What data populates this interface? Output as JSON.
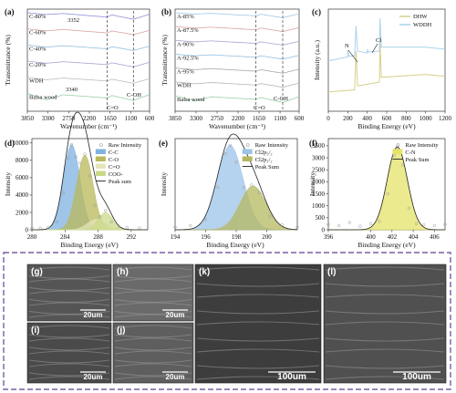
{
  "colors": {
    "frame": "#7a5fa6",
    "cc": "#7fb2e0",
    "co": "#b9b85a",
    "ceo": "#e6e4b8",
    "coo": "#c9d98a",
    "cl32": "#9cc4ea",
    "cl12": "#b6b860",
    "cn": "#e4e36a",
    "dhw": "#d8cf8a",
    "wddh": "#a9d3ee",
    "fit": "#222222",
    "raw": "#999999"
  },
  "panels": {
    "a": {
      "label": "(a)",
      "xlabel": "Wavenumber (cm⁻¹)",
      "ylabel": "Transmittance (%)",
      "peak_top": "3352",
      "peak_bottom": "3340",
      "band_co": "C=O",
      "band_coh": "C-OH"
    },
    "b": {
      "label": "(b)",
      "xlabel": "Wavenumber (cm⁻¹)",
      "ylabel": "Transmittance (%)",
      "band_co": "C=O",
      "band_coh": "C-OH"
    },
    "c": {
      "label": "(c)",
      "xlabel": "Binding Energy (eV)",
      "ylabel": "Intensity (a.u.)",
      "ann_n": "N",
      "ann_cl": "Cl"
    },
    "d": {
      "label": "(d)",
      "xlabel": "Binding Energy (eV)",
      "ylabel": "Intensity"
    },
    "e": {
      "label": "(e)",
      "xlabel": "Binding Energy (eV)",
      "ylabel": "Intensity"
    },
    "f": {
      "label": "(f)",
      "xlabel": "Binding Energy (eV)",
      "ylabel": "Intensity"
    }
  },
  "images": [
    {
      "label": "(g)",
      "scale": "20um"
    },
    {
      "label": "(h)",
      "scale": "20um"
    },
    {
      "label": "(i)",
      "scale": "20um"
    },
    {
      "label": "(j)",
      "scale": "20um"
    },
    {
      "label": "(k)",
      "scale": "100um"
    },
    {
      "label": "(l)",
      "scale": "100um"
    }
  ],
  "chart_data": [
    {
      "id": "a",
      "type": "line",
      "xlabel": "Wavenumber (cm⁻¹)",
      "ylabel": "Transmittance (%)",
      "xlim": [
        3850,
        600
      ],
      "x_ticks": [
        3850,
        3300,
        2750,
        2200,
        1650,
        1100,
        600
      ],
      "reference_lines": [
        1730,
        1030
      ],
      "series": [
        {
          "name": "C-80%",
          "color": "#8f8fd8",
          "points": [
            [
              3850,
              1
            ],
            [
              3352,
              0.88
            ],
            [
              2900,
              0.95
            ],
            [
              1730,
              0.7
            ],
            [
              1600,
              0.85
            ],
            [
              1030,
              0.55
            ],
            [
              600,
              0.9
            ]
          ]
        },
        {
          "name": "C-60%",
          "color": "#d9a3a3",
          "points": [
            [
              3850,
              1
            ],
            [
              3352,
              0.86
            ],
            [
              2900,
              0.96
            ],
            [
              1730,
              0.72
            ],
            [
              1600,
              0.86
            ],
            [
              1030,
              0.6
            ],
            [
              600,
              0.9
            ]
          ]
        },
        {
          "name": "C-40%",
          "color": "#8fbfe0",
          "points": [
            [
              3850,
              1
            ],
            [
              3352,
              0.85
            ],
            [
              2900,
              0.95
            ],
            [
              1730,
              0.74
            ],
            [
              1600,
              0.88
            ],
            [
              1030,
              0.62
            ],
            [
              600,
              0.92
            ]
          ]
        },
        {
          "name": "C-20%",
          "color": "#a5a5d0",
          "points": [
            [
              3850,
              1
            ],
            [
              3352,
              0.85
            ],
            [
              2900,
              0.96
            ],
            [
              1730,
              0.76
            ],
            [
              1600,
              0.88
            ],
            [
              1030,
              0.6
            ],
            [
              600,
              0.92
            ]
          ]
        },
        {
          "name": "WDH",
          "color": "#bdbdbd",
          "points": [
            [
              3850,
              1
            ],
            [
              3352,
              0.82
            ],
            [
              2900,
              0.94
            ],
            [
              1730,
              0.74
            ],
            [
              1600,
              0.86
            ],
            [
              1030,
              0.58
            ],
            [
              600,
              0.9
            ]
          ]
        },
        {
          "name": "Balsa wood",
          "color": "#9ad0a8",
          "points": [
            [
              3850,
              1
            ],
            [
              3340,
              0.55
            ],
            [
              2900,
              0.9
            ],
            [
              1730,
              0.68
            ],
            [
              1600,
              0.85
            ],
            [
              1030,
              0.5
            ],
            [
              600,
              0.92
            ]
          ]
        }
      ]
    },
    {
      "id": "b",
      "type": "line",
      "xlabel": "Wavenumber (cm⁻¹)",
      "ylabel": "Transmittance (%)",
      "xlim": [
        3850,
        600
      ],
      "x_ticks": [
        3850,
        3300,
        2750,
        2200,
        1650,
        1100,
        600
      ],
      "reference_lines": [
        1730,
        1030
      ],
      "series": [
        {
          "name": "A-85%",
          "color": "#9ec9e8",
          "points": [
            [
              3850,
              1
            ],
            [
              3350,
              0.9
            ],
            [
              2900,
              0.95
            ],
            [
              1730,
              0.75
            ],
            [
              1600,
              0.88
            ],
            [
              1030,
              0.6
            ],
            [
              600,
              0.92
            ]
          ]
        },
        {
          "name": "A-87.5%",
          "color": "#d9a3a3",
          "points": [
            [
              3850,
              1
            ],
            [
              3350,
              0.88
            ],
            [
              2900,
              0.95
            ],
            [
              1730,
              0.74
            ],
            [
              1600,
              0.88
            ],
            [
              1030,
              0.6
            ],
            [
              600,
              0.92
            ]
          ]
        },
        {
          "name": "A-90%",
          "color": "#a5a5d0",
          "points": [
            [
              3850,
              1
            ],
            [
              3350,
              0.88
            ],
            [
              2900,
              0.96
            ],
            [
              1730,
              0.76
            ],
            [
              1600,
              0.88
            ],
            [
              1030,
              0.62
            ],
            [
              600,
              0.92
            ]
          ]
        },
        {
          "name": "A-92.5%",
          "color": "#8fbfe0",
          "points": [
            [
              3850,
              1
            ],
            [
              3350,
              0.87
            ],
            [
              2900,
              0.95
            ],
            [
              1730,
              0.75
            ],
            [
              1600,
              0.87
            ],
            [
              1030,
              0.6
            ],
            [
              600,
              0.91
            ]
          ]
        },
        {
          "name": "A-95%",
          "color": "#a8a8a8",
          "points": [
            [
              3850,
              1
            ],
            [
              3350,
              0.86
            ],
            [
              2900,
              0.95
            ],
            [
              1730,
              0.74
            ],
            [
              1600,
              0.86
            ],
            [
              1030,
              0.58
            ],
            [
              600,
              0.91
            ]
          ]
        },
        {
          "name": "WDH",
          "color": "#b5b5b5",
          "points": [
            [
              3850,
              1
            ],
            [
              3350,
              0.84
            ],
            [
              2900,
              0.94
            ],
            [
              1730,
              0.74
            ],
            [
              1600,
              0.86
            ],
            [
              1030,
              0.56
            ],
            [
              600,
              0.9
            ]
          ]
        },
        {
          "name": "Balsa wood",
          "color": "#9ad0a8",
          "points": [
            [
              3850,
              1
            ],
            [
              3340,
              0.58
            ],
            [
              2900,
              0.9
            ],
            [
              1730,
              0.7
            ],
            [
              1600,
              0.85
            ],
            [
              1030,
              0.45
            ],
            [
              600,
              0.92
            ]
          ]
        }
      ]
    },
    {
      "id": "c",
      "type": "line",
      "xlabel": "Binding Energy (eV)",
      "ylabel": "Intensity (a.u.)",
      "xlim": [
        0,
        1200
      ],
      "x_ticks": [
        0,
        200,
        400,
        600,
        800,
        1000,
        1200
      ],
      "legend": "top-right",
      "series": [
        {
          "name": "DHW",
          "color": "#d8cf8a",
          "points": [
            [
              0,
              0.2
            ],
            [
              270,
              0.22
            ],
            [
              285,
              0.62
            ],
            [
              300,
              0.26
            ],
            [
              525,
              0.3
            ],
            [
              532,
              0.72
            ],
            [
              545,
              0.35
            ],
            [
              1000,
              0.38
            ],
            [
              1200,
              0.36
            ]
          ]
        },
        {
          "name": "WDDH",
          "color": "#a9d3ee",
          "points": [
            [
              0,
              0.52
            ],
            [
              200,
              0.56
            ],
            [
              202,
              0.63
            ],
            [
              210,
              0.57
            ],
            [
              270,
              0.57
            ],
            [
              285,
              0.88
            ],
            [
              300,
              0.62
            ],
            [
              400,
              0.6
            ],
            [
              402,
              0.64
            ],
            [
              410,
              0.61
            ],
            [
              525,
              0.62
            ],
            [
              532,
              0.96
            ],
            [
              545,
              0.66
            ],
            [
              1000,
              0.66
            ],
            [
              1200,
              0.64
            ]
          ]
        }
      ]
    },
    {
      "id": "d",
      "type": "area",
      "xlabel": "Binding Energy (eV)",
      "ylabel": "Intensity",
      "xlim": [
        280,
        294
      ],
      "ylim": [
        0,
        10500
      ],
      "x_ticks": [
        280,
        284,
        288,
        292
      ],
      "y_ticks": [
        0,
        2000,
        4000,
        6000,
        8000,
        10000
      ],
      "legend": "top-right",
      "components": [
        {
          "name": "C-C",
          "center": 284.8,
          "height": 9800,
          "width": 1.0,
          "color": "#7fb2e0"
        },
        {
          "name": "C-O",
          "center": 286.4,
          "height": 8600,
          "width": 1.0,
          "color": "#b9b85a"
        },
        {
          "name": "C=O",
          "center": 287.8,
          "height": 1200,
          "width": 1.1,
          "color": "#e6e4b8"
        },
        {
          "name": "COO-",
          "center": 288.9,
          "height": 2000,
          "width": 0.9,
          "color": "#c9d98a"
        }
      ],
      "fit_name": "Peak sum",
      "raw_name": "Raw Intensity",
      "raw_points": [
        [
          280,
          180
        ],
        [
          281,
          200
        ],
        [
          282,
          280
        ],
        [
          283,
          900
        ],
        [
          283.8,
          4200
        ],
        [
          284.4,
          8300
        ],
        [
          284.8,
          9800
        ],
        [
          285.3,
          8400
        ],
        [
          285.8,
          7700
        ],
        [
          286.4,
          8700
        ],
        [
          287,
          6200
        ],
        [
          287.6,
          2800
        ],
        [
          288.2,
          1500
        ],
        [
          288.9,
          2200
        ],
        [
          289.6,
          900
        ],
        [
          290.5,
          350
        ],
        [
          291.5,
          250
        ],
        [
          293,
          200
        ]
      ]
    },
    {
      "id": "e",
      "type": "area",
      "xlabel": "Binding Energy (eV)",
      "ylabel": "Intensity",
      "xlim": [
        194,
        202
      ],
      "x_ticks": [
        194,
        196,
        198,
        200
      ],
      "legend": "top-right",
      "components": [
        {
          "name": "Cl2p₃/₂",
          "center": 197.6,
          "height": 1.0,
          "width": 0.85,
          "color": "#9cc4ea"
        },
        {
          "name": "Cl2p₁/₂",
          "center": 199.1,
          "height": 0.52,
          "width": 0.85,
          "color": "#b6b860"
        }
      ],
      "fit_name": "Peak Sum",
      "raw_name": "Raw Intensity",
      "raw_points": [
        [
          194,
          0.03
        ],
        [
          195,
          0.05
        ],
        [
          196,
          0.12
        ],
        [
          196.8,
          0.5
        ],
        [
          197.3,
          0.9
        ],
        [
          197.6,
          1.0
        ],
        [
          198,
          0.8
        ],
        [
          198.5,
          0.5
        ],
        [
          199,
          0.53
        ],
        [
          199.5,
          0.44
        ],
        [
          200.2,
          0.16
        ],
        [
          201,
          0.06
        ],
        [
          202,
          0.03
        ]
      ]
    },
    {
      "id": "f",
      "type": "area",
      "xlabel": "Binding Energy (eV)",
      "ylabel": "Intensity",
      "xlim": [
        396,
        407
      ],
      "ylim": [
        0,
        3800
      ],
      "x_ticks": [
        396,
        400,
        402,
        404,
        406
      ],
      "y_ticks": [
        0,
        500,
        1000,
        1500,
        2000,
        2500,
        3000,
        3500
      ],
      "legend": "top-right",
      "components": [
        {
          "name": "C-N",
          "center": 402.5,
          "height": 3450,
          "width": 0.95,
          "color": "#e4e36a"
        }
      ],
      "fit_name": "Peak Sum",
      "raw_name": "Raw Intensity",
      "raw_points": [
        [
          396,
          220
        ],
        [
          397,
          180
        ],
        [
          398,
          300
        ],
        [
          399,
          150
        ],
        [
          400,
          260
        ],
        [
          400.8,
          350
        ],
        [
          401.6,
          1500
        ],
        [
          402.2,
          3100
        ],
        [
          402.5,
          3450
        ],
        [
          403,
          2700
        ],
        [
          403.6,
          900
        ],
        [
          404.3,
          250
        ],
        [
          405,
          200
        ],
        [
          406,
          180
        ],
        [
          407,
          220
        ]
      ]
    }
  ]
}
